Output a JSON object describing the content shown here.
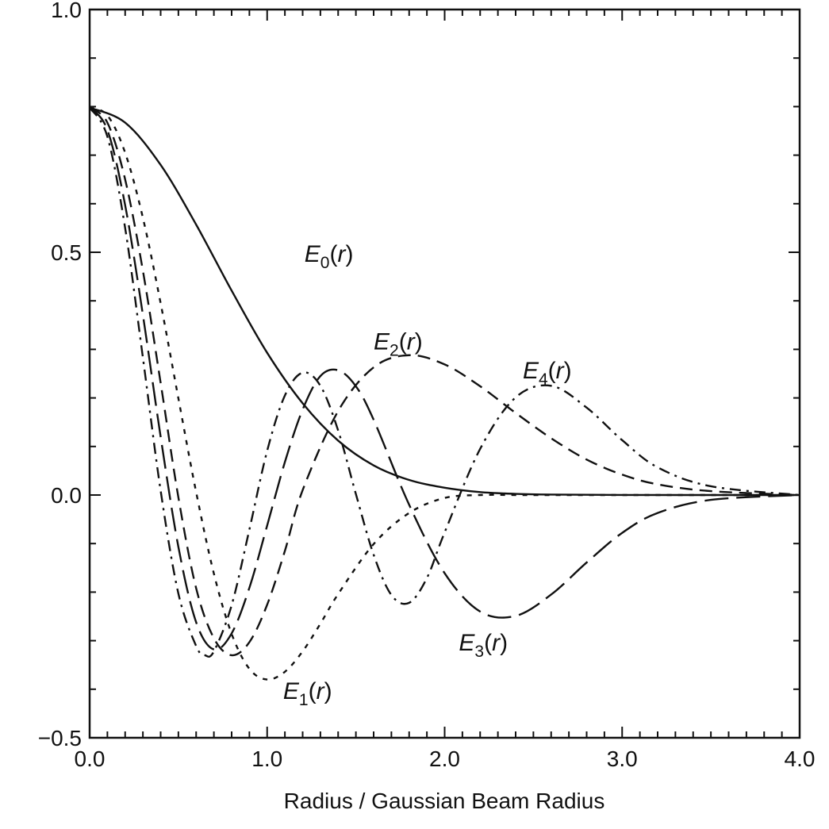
{
  "chart_data": {
    "type": "line",
    "title": "",
    "xlabel": "Radius / Gaussian Beam Radius",
    "ylabel": "",
    "xlim": [
      0.0,
      4.0
    ],
    "ylim": [
      -0.5,
      1.0
    ],
    "x_ticks": [
      0.0,
      1.0,
      2.0,
      3.0,
      4.0
    ],
    "x_tick_labels": [
      "0.0",
      "1.0",
      "2.0",
      "3.0",
      "4.0"
    ],
    "y_ticks": [
      -0.5,
      0.0,
      0.5,
      1.0
    ],
    "y_tick_labels": [
      "−0.5",
      "0.0",
      "0.5",
      "1.0"
    ],
    "grid": false,
    "legend": "none",
    "series": [
      {
        "name": "E0(r)",
        "style": "solid",
        "x": [
          0.0,
          0.2,
          0.4,
          0.6,
          0.8,
          1.0,
          1.2,
          1.4,
          1.6,
          1.8,
          2.0,
          2.2,
          2.4,
          2.6,
          3.0,
          3.5,
          4.0
        ],
        "values": [
          0.798,
          0.767,
          0.68,
          0.557,
          0.421,
          0.293,
          0.189,
          0.112,
          0.061,
          0.031,
          0.015,
          0.006,
          0.0024,
          0.001,
          0.0001,
          0.0,
          0.0
        ]
      },
      {
        "name": "E1(r)",
        "style": "short-dash",
        "x": [
          0.0,
          0.1,
          0.2,
          0.3,
          0.4,
          0.5,
          0.6,
          0.7,
          0.8,
          0.9,
          1.0,
          1.1,
          1.2,
          1.3,
          1.4,
          1.6,
          1.8,
          2.0,
          2.2,
          2.4,
          2.6,
          3.0,
          3.5,
          4.0
        ],
        "values": [
          0.798,
          0.782,
          0.705,
          0.571,
          0.395,
          0.199,
          0.006,
          -0.162,
          -0.286,
          -0.358,
          -0.38,
          -0.364,
          -0.322,
          -0.265,
          -0.204,
          -0.101,
          -0.037,
          -0.006,
          0.0,
          0.0,
          0.0,
          0.0,
          0.0,
          0.0
        ]
      },
      {
        "name": "E2(r)",
        "style": "medium-dash",
        "x": [
          0.0,
          0.1,
          0.2,
          0.3,
          0.4,
          0.5,
          0.6,
          0.7,
          0.8,
          0.9,
          1.0,
          1.1,
          1.2,
          1.4,
          1.6,
          1.8,
          2.0,
          2.2,
          2.4,
          2.6,
          2.8,
          3.0,
          3.2,
          3.5,
          4.0
        ],
        "values": [
          0.798,
          0.767,
          0.65,
          0.462,
          0.231,
          -0.005,
          -0.192,
          -0.295,
          -0.33,
          -0.303,
          -0.226,
          -0.115,
          0.01,
          0.173,
          0.263,
          0.288,
          0.269,
          0.224,
          0.169,
          0.117,
          0.073,
          0.042,
          0.022,
          0.008,
          0.0
        ]
      },
      {
        "name": "E3(r)",
        "style": "long-dash",
        "x": [
          0.0,
          0.1,
          0.2,
          0.3,
          0.4,
          0.5,
          0.6,
          0.7,
          0.8,
          0.9,
          1.0,
          1.1,
          1.2,
          1.3,
          1.4,
          1.5,
          1.6,
          1.8,
          2.0,
          2.2,
          2.4,
          2.6,
          2.8,
          3.0,
          3.2,
          3.5,
          4.0
        ],
        "values": [
          0.798,
          0.752,
          0.597,
          0.371,
          0.12,
          -0.107,
          -0.262,
          -0.318,
          -0.285,
          -0.191,
          -0.063,
          0.068,
          0.176,
          0.245,
          0.257,
          0.224,
          0.155,
          -0.02,
          -0.161,
          -0.24,
          -0.249,
          -0.205,
          -0.139,
          -0.078,
          -0.037,
          -0.01,
          0.0
        ]
      },
      {
        "name": "E4(r)",
        "style": "dash-dot",
        "x": [
          0.0,
          0.1,
          0.2,
          0.3,
          0.4,
          0.5,
          0.6,
          0.65,
          0.7,
          0.8,
          0.9,
          1.0,
          1.1,
          1.2,
          1.3,
          1.4,
          1.5,
          1.6,
          1.7,
          1.8,
          1.9,
          2.0,
          2.2,
          2.4,
          2.6,
          2.8,
          3.0,
          3.2,
          3.5,
          4.0
        ],
        "values": [
          0.798,
          0.738,
          0.55,
          0.283,
          0.009,
          -0.203,
          -0.311,
          -0.33,
          -0.322,
          -0.227,
          -0.071,
          0.091,
          0.205,
          0.252,
          0.225,
          0.133,
          0.002,
          -0.123,
          -0.206,
          -0.222,
          -0.171,
          -0.077,
          0.095,
          0.201,
          0.225,
          0.18,
          0.113,
          0.057,
          0.018,
          0.0
        ]
      }
    ],
    "annotations": [
      {
        "series": "E0(r)",
        "letter": "E",
        "sub": "0",
        "arg": "r",
        "x": 1.21,
        "y": 0.48
      },
      {
        "series": "E1(r)",
        "letter": "E",
        "sub": "1",
        "arg": "r",
        "x": 1.09,
        "y": -0.42
      },
      {
        "series": "E2(r)",
        "letter": "E",
        "sub": "2",
        "arg": "r",
        "x": 1.6,
        "y": 0.3
      },
      {
        "series": "E3(r)",
        "letter": "E",
        "sub": "3",
        "arg": "r",
        "x": 2.08,
        "y": -0.32
      },
      {
        "series": "E4(r)",
        "letter": "E",
        "sub": "4",
        "arg": "r",
        "x": 2.44,
        "y": 0.24
      }
    ]
  }
}
